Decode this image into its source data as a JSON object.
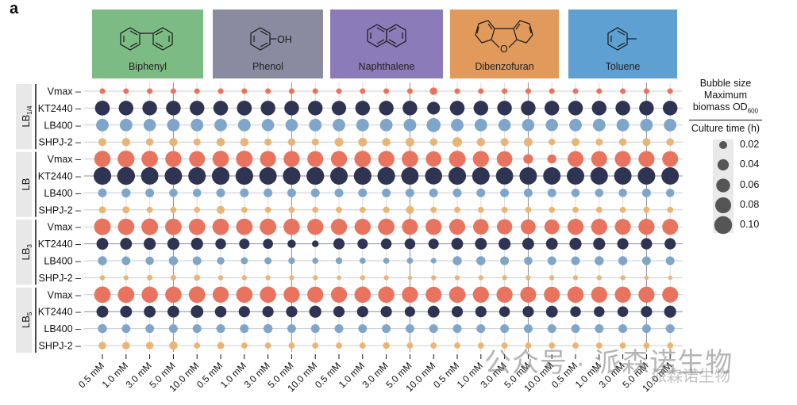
{
  "panel_letter": "a",
  "molecules": [
    {
      "name": "Biphenyl",
      "color": "#7dbb84",
      "icon": "biphenyl-structure"
    },
    {
      "name": "Phenol",
      "color": "#8a8aa0",
      "icon": "phenol-structure",
      "substituent": "OH"
    },
    {
      "name": "Naphthalene",
      "color": "#8b7bb8",
      "icon": "naphthalene-structure"
    },
    {
      "name": "Dibenzofuran",
      "color": "#e19a5c",
      "icon": "dibenzofuran-structure",
      "heteroatom": "O"
    },
    {
      "name": "Toluene",
      "color": "#5fa0d2",
      "icon": "toluene-structure"
    }
  ],
  "legend": {
    "line1": "Bubble size",
    "line2": "Maximum",
    "line3": "biomass OD",
    "line3_sub": "600",
    "line4": "Culture time (h)",
    "items": [
      "0.02",
      "0.04",
      "0.06",
      "0.08",
      "0.10"
    ],
    "values": [
      0.02,
      0.04,
      0.06,
      0.08,
      0.1
    ],
    "color": "#555555"
  },
  "watermark": {
    "main": "公众号 · 派森诺生物",
    "sub": "派森诺生物"
  },
  "chart_data": {
    "type": "scatter",
    "subtype": "bubble-grid",
    "title": "",
    "xlabel": "",
    "ylabel": "",
    "legend_placement": "right",
    "grid": true,
    "groups": [
      "Biphenyl",
      "Phenol",
      "Naphthalene",
      "Dibenzofuran",
      "Toluene"
    ],
    "concentrations": [
      "0.5 mM",
      "1.0 mM",
      "3.0 mM",
      "5.0 mM",
      "10.0 mM"
    ],
    "x_tick_labels": [
      "0.5 mM",
      "1.0 mM",
      "3.0 mM",
      "5.0 mM",
      "10.0 mM",
      "0.5 mM",
      "1.0 mM",
      "3.0 mM",
      "5.0 mM",
      "10.0 mM",
      "0.5 mM",
      "1.0 mM",
      "3.0 mM",
      "5.0 mM",
      "10.0 mM",
      "0.5 mM",
      "1.0 mM",
      "3.0 mM",
      "5.0 mM",
      "10.0 mM",
      "0.5 mM",
      "1.0 mM",
      "3.0 mM",
      "5.0 mM",
      "10.0 mM"
    ],
    "row_labels": [
      "Vmax",
      "KT2440",
      "LB400",
      "SHPJ-2"
    ],
    "row_colors": {
      "Vmax": "#e8735e",
      "KT2440": "#2f3452",
      "LB400": "#7fa6c8",
      "SHPJ-2": "#e8b574"
    },
    "media": [
      {
        "label": "LB",
        "sub": "1/4",
        "rows": {
          "Vmax": [
            0.01,
            0.01,
            0.01,
            0.01,
            0.01,
            0.01,
            0.01,
            0.01,
            0.01,
            0.01,
            0.01,
            0.01,
            0.01,
            0.01,
            0.018,
            0.01,
            0.01,
            0.01,
            0.01,
            0.01,
            0.01,
            0.01,
            0.01,
            0.01,
            0.01
          ],
          "KT2440": [
            0.07,
            0.068,
            0.068,
            0.068,
            0.068,
            0.068,
            0.07,
            0.068,
            0.068,
            0.068,
            0.066,
            0.068,
            0.068,
            0.068,
            0.052,
            0.068,
            0.068,
            0.068,
            0.068,
            0.068,
            0.068,
            0.068,
            0.068,
            0.068,
            0.068
          ],
          "LB400": [
            0.05,
            0.05,
            0.048,
            0.05,
            0.05,
            0.05,
            0.05,
            0.048,
            0.048,
            0.05,
            0.05,
            0.05,
            0.05,
            0.05,
            0.062,
            0.05,
            0.05,
            0.048,
            0.048,
            0.048,
            0.05,
            0.05,
            0.05,
            0.05,
            0.05
          ],
          "SHPJ-2": [
            0.02,
            0.022,
            0.018,
            0.022,
            0.016,
            0.022,
            0.022,
            0.016,
            0.018,
            0.016,
            0.024,
            0.024,
            0.022,
            0.024,
            0.018,
            0.03,
            0.022,
            0.02,
            0.024,
            0.014,
            0.02,
            0.016,
            0.018,
            0.02,
            0.018
          ]
        }
      },
      {
        "label": "LB",
        "sub": "",
        "rows": {
          "Vmax": [
            0.085,
            0.09,
            0.085,
            0.082,
            0.08,
            0.085,
            0.088,
            0.082,
            0.082,
            0.08,
            0.082,
            0.086,
            0.084,
            0.085,
            0.076,
            0.086,
            0.082,
            0.078,
            0.03,
            0.026,
            0.08,
            0.08,
            0.082,
            0.082,
            0.08
          ],
          "KT2440": [
            0.098,
            0.1,
            0.096,
            0.096,
            0.096,
            0.098,
            0.098,
            0.096,
            0.098,
            0.098,
            0.096,
            0.098,
            0.098,
            0.096,
            0.092,
            0.098,
            0.096,
            0.094,
            0.096,
            0.096,
            0.096,
            0.096,
            0.096,
            0.096,
            0.096
          ],
          "LB400": [
            0.024,
            0.026,
            0.024,
            0.022,
            0.022,
            0.024,
            0.024,
            0.024,
            0.024,
            0.024,
            0.024,
            0.024,
            0.024,
            0.024,
            0.024,
            0.024,
            0.024,
            0.024,
            0.024,
            0.024,
            0.022,
            0.022,
            0.022,
            0.024,
            0.022
          ],
          "SHPJ-2": [
            0.016,
            0.016,
            0.012,
            0.012,
            0.012,
            0.02,
            0.012,
            0.012,
            0.012,
            0.012,
            0.012,
            0.012,
            0.014,
            0.02,
            0.012,
            0.012,
            0.012,
            0.012,
            0.012,
            0.012,
            0.012,
            0.012,
            0.012,
            0.012,
            0.012
          ]
        }
      },
      {
        "label": "LB",
        "sub": "3",
        "rows": {
          "Vmax": [
            0.088,
            0.086,
            0.088,
            0.086,
            0.086,
            0.086,
            0.086,
            0.086,
            0.084,
            0.082,
            0.082,
            0.082,
            0.086,
            0.08,
            0.082,
            0.08,
            0.076,
            0.074,
            0.07,
            0.07,
            0.082,
            0.082,
            0.08,
            0.082,
            0.08
          ],
          "KT2440": [
            0.044,
            0.044,
            0.046,
            0.046,
            0.046,
            0.036,
            0.034,
            0.032,
            0.022,
            0.014,
            0.04,
            0.034,
            0.036,
            0.036,
            0.034,
            0.044,
            0.044,
            0.046,
            0.044,
            0.044,
            0.046,
            0.046,
            0.04,
            0.04,
            0.04
          ],
          "LB400": [
            0.026,
            0.024,
            0.022,
            0.026,
            0.024,
            0.018,
            0.016,
            0.016,
            0.014,
            0.012,
            0.014,
            0.012,
            0.012,
            0.012,
            0.01,
            0.026,
            0.026,
            0.024,
            0.022,
            0.024,
            0.024,
            0.026,
            0.026,
            0.024,
            0.024
          ],
          "SHPJ-2": [
            0.008,
            0.008,
            0.01,
            0.01,
            0.012,
            0.008,
            0.008,
            0.008,
            0.008,
            0.008,
            0.006,
            0.008,
            0.008,
            0.006,
            0.008,
            0.008,
            0.008,
            0.008,
            0.008,
            0.008,
            0.008,
            0.008,
            0.008,
            0.006,
            0.006
          ]
        }
      },
      {
        "label": "LB",
        "sub": "5",
        "rows": {
          "Vmax": [
            0.086,
            0.086,
            0.084,
            0.084,
            0.086,
            0.082,
            0.084,
            0.084,
            0.082,
            0.082,
            0.082,
            0.084,
            0.084,
            0.082,
            0.08,
            0.084,
            0.082,
            0.082,
            0.08,
            0.08,
            0.084,
            0.082,
            0.082,
            0.082,
            0.08
          ],
          "KT2440": [
            0.044,
            0.044,
            0.044,
            0.044,
            0.05,
            0.042,
            0.04,
            0.04,
            0.04,
            0.046,
            0.04,
            0.04,
            0.04,
            0.034,
            0.044,
            0.04,
            0.04,
            0.036,
            0.04,
            0.044,
            0.036,
            0.036,
            0.036,
            0.04,
            0.046
          ],
          "LB400": [
            0.026,
            0.024,
            0.024,
            0.024,
            0.024,
            0.024,
            0.024,
            0.026,
            0.024,
            0.024,
            0.024,
            0.024,
            0.024,
            0.024,
            0.024,
            0.024,
            0.024,
            0.024,
            0.024,
            0.024,
            0.024,
            0.024,
            0.024,
            0.024,
            0.024
          ],
          "SHPJ-2": [
            0.018,
            0.018,
            0.018,
            0.022,
            0.012,
            0.016,
            0.012,
            0.012,
            0.012,
            0.012,
            0.012,
            0.012,
            0.014,
            0.012,
            0.012,
            0.012,
            0.012,
            0.012,
            0.012,
            0.012,
            0.012,
            0.012,
            0.012,
            0.012,
            0.012
          ]
        }
      }
    ]
  }
}
